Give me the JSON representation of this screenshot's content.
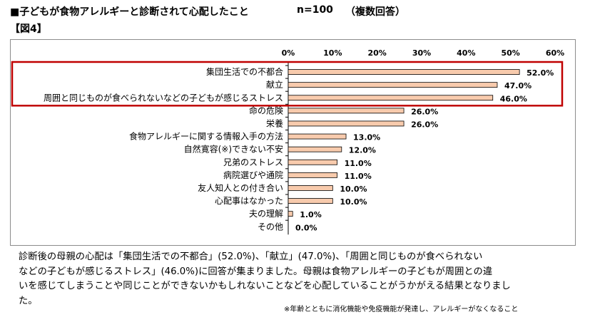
{
  "header": {
    "title": "■子どもが食物アレルギーと診断されて心配したこと",
    "n_label": "n=100",
    "multi_answer": "（複数回答）",
    "figure_label": "【図4】"
  },
  "chart_data": {
    "type": "bar",
    "orientation": "horizontal",
    "categories": [
      "集団生活での不都合",
      "献立",
      "周囲と同じものが食べられないなどの子どもが感じるストレス",
      "命の危険",
      "栄養",
      "食物アレルギーに関する情報入手の方法",
      "自然寛容(※)できない不安",
      "兄弟のストレス",
      "病院選びや通院",
      "友人知人との付き合い",
      "心配事はなかった",
      "夫の理解",
      "その他"
    ],
    "values": [
      52.0,
      47.0,
      46.0,
      26.0,
      26.0,
      13.0,
      12.0,
      11.0,
      11.0,
      10.0,
      10.0,
      1.0,
      0.0
    ],
    "value_labels": [
      "52.0%",
      "47.0%",
      "46.0%",
      "26.0%",
      "26.0%",
      "13.0%",
      "12.0%",
      "11.0%",
      "11.0%",
      "10.0%",
      "10.0%",
      "1.0%",
      "0.0%"
    ],
    "x_ticks": [
      0,
      10,
      20,
      30,
      40,
      50,
      60
    ],
    "x_tick_labels": [
      "0%",
      "10%",
      "20%",
      "30%",
      "40%",
      "50%",
      "60%"
    ],
    "xlim": [
      0,
      60
    ],
    "bar_color": "#f8cbad",
    "bar_edge_color": "#000000",
    "highlight_color": "#c00000",
    "highlighted_categories": [
      0,
      1,
      2
    ]
  },
  "description": {
    "lines": [
      "診断後の母親の心配は「集団生活での不都合」(52.0%)、「献立」(47.0%)、「周囲と同じものが食べられない",
      "などの子どもが感じるストレス」(46.0%)に回答が集まりました。母親は食物アレルギーの子どもが周囲との違",
      "いを感じてしまうことや同じことができないかもしれないことなどを心配していることがうかがえる結果となりまし",
      "た。"
    ],
    "note": "※年齢とともに消化機能や免疫機能が発達し、アレルギーがなくなること"
  }
}
